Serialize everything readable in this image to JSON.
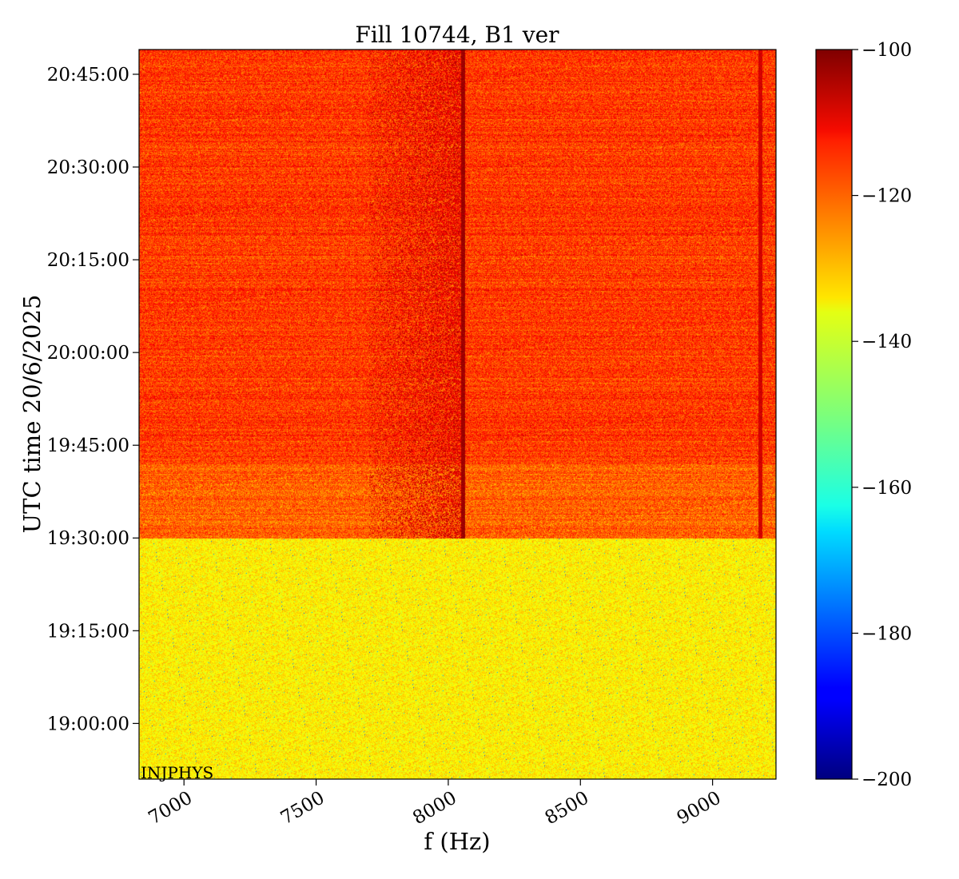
{
  "chart_data": {
    "type": "heatmap",
    "title": "Fill 10744, B1 ver",
    "xlabel": "f (Hz)",
    "ylabel": "UTC time 20/6/2025",
    "xlim": [
      6830,
      9240
    ],
    "x_ticks": [
      7000,
      7500,
      8000,
      8500,
      9000
    ],
    "x_tick_labels": [
      "7000",
      "7500",
      "8000",
      "8500",
      "9000"
    ],
    "ylim": [
      "18:51:00",
      "20:49:00"
    ],
    "y_ticks": [
      "19:00:00",
      "19:15:00",
      "19:30:00",
      "19:45:00",
      "20:00:00",
      "20:15:00",
      "20:30:00",
      "20:45:00"
    ],
    "y_tick_labels": [
      "19:00:00",
      "19:15:00",
      "19:30:00",
      "19:45:00",
      "20:00:00",
      "20:15:00",
      "20:30:00",
      "20:45:00"
    ],
    "colorbar": {
      "colormap": "jet",
      "range": [
        -200,
        -100
      ],
      "ticks": [
        -100,
        -120,
        -140,
        -160,
        -180,
        -200
      ],
      "tick_labels": [
        "−100",
        "−120",
        "−140",
        "−160",
        "−180",
        "−200"
      ]
    },
    "regions": [
      {
        "time_start": "18:51:00",
        "time_end": "19:30:00",
        "level": -136
      },
      {
        "time_start": "19:30:00",
        "time_end": "19:42:00",
        "level": -122
      },
      {
        "time_start": "19:42:00",
        "time_end": "20:49:00",
        "level": -118
      }
    ],
    "lines": [
      {
        "f": 8055,
        "time_start": "19:30:00",
        "time_end": "20:49:00",
        "level": -103
      },
      {
        "f": 9180,
        "time_start": "19:30:00",
        "time_end": "20:49:00",
        "level": -108
      }
    ],
    "band": {
      "f_start": 7700,
      "f_end": 8050,
      "time_start": "19:30:00",
      "time_end": "20:49:00",
      "level": -108
    },
    "annotation": "INJPHYS",
    "grid": false
  }
}
